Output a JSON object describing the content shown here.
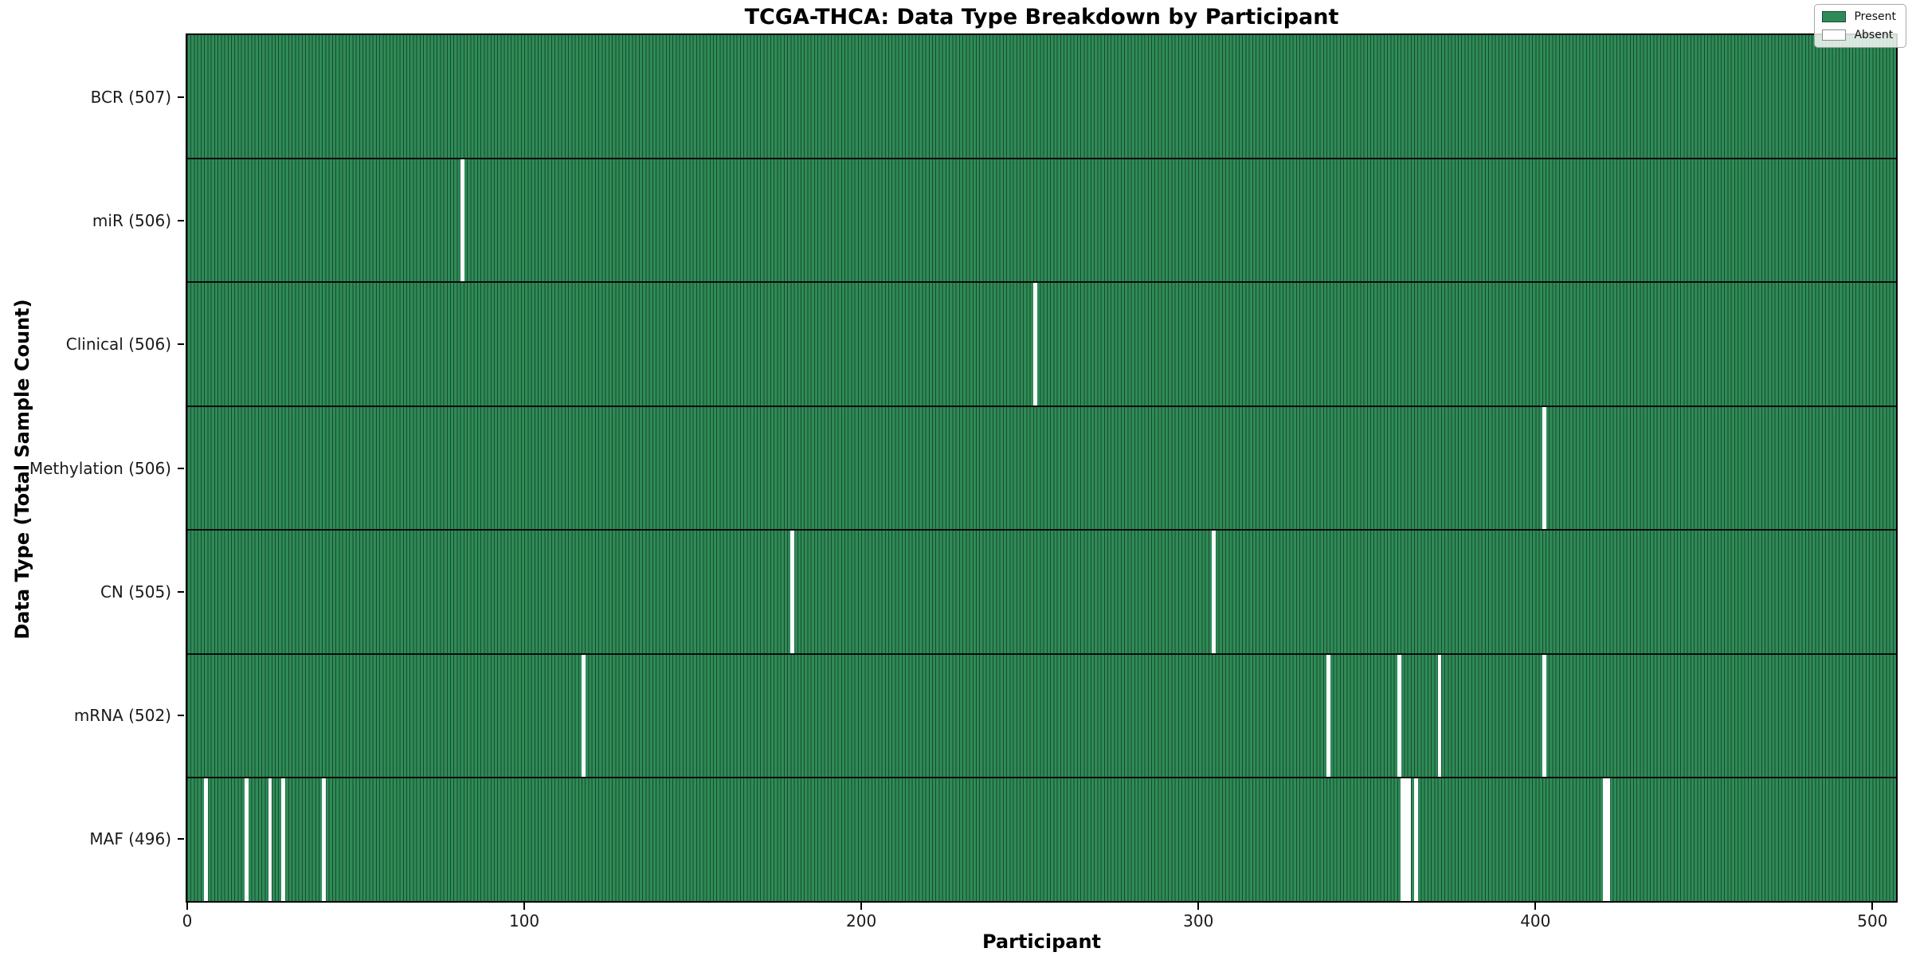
{
  "figure": {
    "kind": "matplotlib-style presence/absence heatmap"
  },
  "chart_data": {
    "type": "heatmap",
    "title": "TCGA-THCA: Data Type Breakdown by Participant",
    "xlabel": "Participant",
    "ylabel": "Data Type (Total Sample Count)",
    "n_participants": 507,
    "xlim": [
      0,
      507
    ],
    "x_ticks": [
      0,
      100,
      200,
      300,
      400,
      500
    ],
    "grid": false,
    "legend_position": "upper right",
    "legend": [
      {
        "label": "Present",
        "color": "#2e8b57"
      },
      {
        "label": "Absent",
        "color": "#ffffff"
      }
    ],
    "colors": {
      "present_fill": "#2e8b57",
      "bar_edge": "#1b4a2e",
      "absent_fill": "#ffffff",
      "row_separator": "#0b0b0b",
      "frame": "#000000"
    },
    "rows": [
      {
        "label": "BCR (507)",
        "data_type": "BCR",
        "present_count": 507,
        "absent_participants": []
      },
      {
        "label": "miR (506)",
        "data_type": "miR",
        "present_count": 506,
        "absent_participants": [
          81
        ]
      },
      {
        "label": "Clinical (506)",
        "data_type": "Clinical",
        "present_count": 506,
        "absent_participants": [
          251
        ]
      },
      {
        "label": "Methylation (506)",
        "data_type": "Methylation",
        "present_count": 506,
        "absent_participants": [
          402
        ]
      },
      {
        "label": "CN (505)",
        "data_type": "CN",
        "present_count": 505,
        "absent_participants": [
          179,
          304
        ]
      },
      {
        "label": "mRNA (502)",
        "data_type": "mRNA",
        "present_count": 502,
        "absent_participants": [
          117,
          338,
          359,
          371,
          402
        ]
      },
      {
        "label": "MAF (496)",
        "data_type": "MAF",
        "present_count": 496,
        "absent_participants": [
          5,
          17,
          24,
          28,
          40,
          360,
          361,
          362,
          364,
          420,
          421
        ]
      }
    ]
  }
}
